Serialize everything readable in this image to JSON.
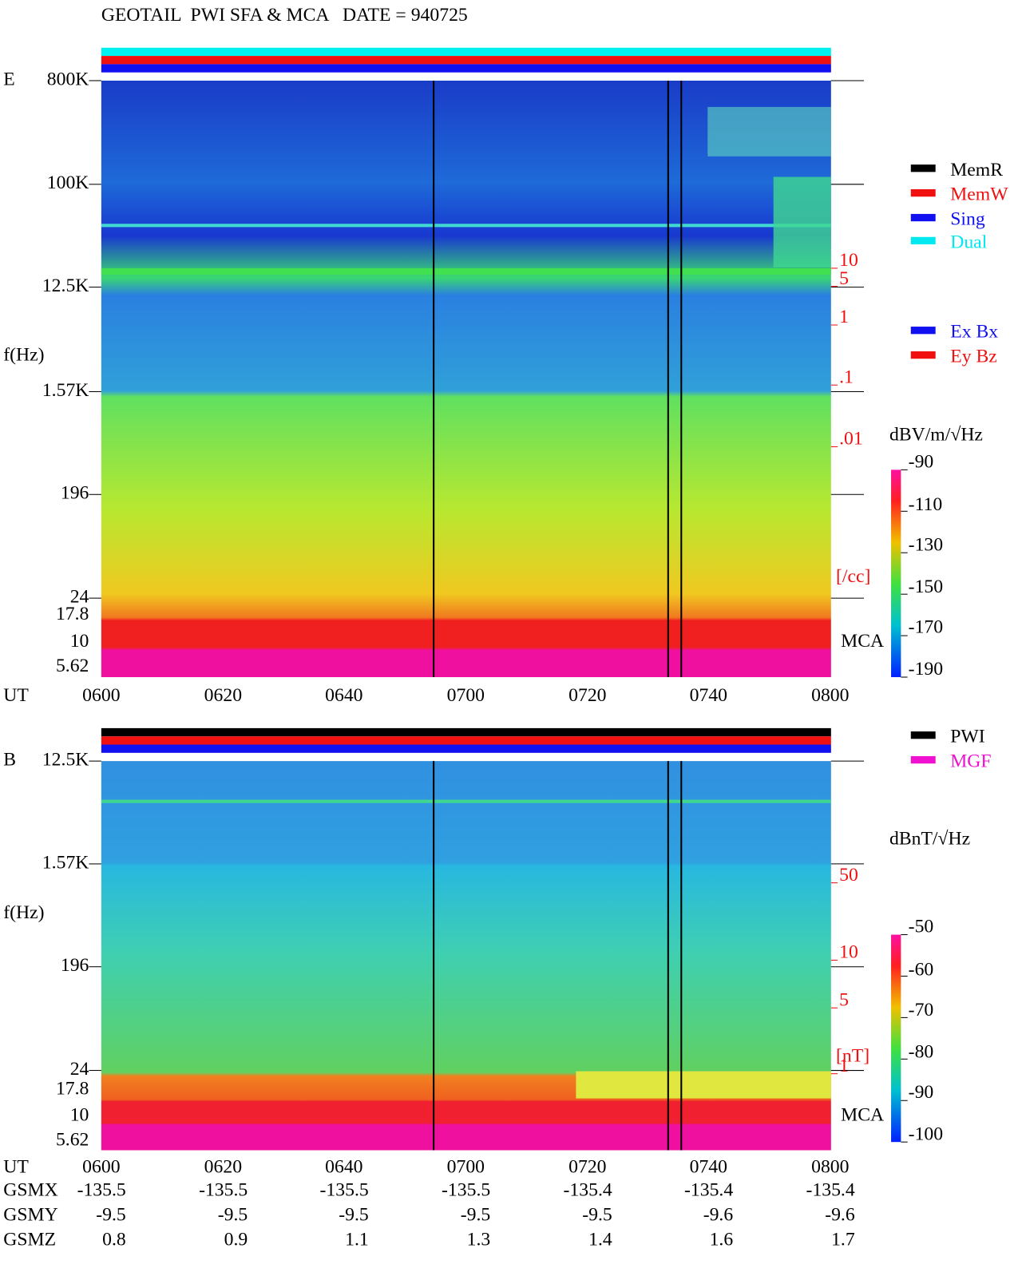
{
  "title": "GEOTAIL  PWI SFA & MCA   DATE = 940725",
  "panels": [
    {
      "label": "E",
      "freq_axis_label": "f(Hz)",
      "freq_labels": [
        "800K",
        "100K",
        "12.5K",
        "1.57K",
        "196",
        "24",
        "17.8",
        "10",
        "5.62"
      ],
      "time_axis_label": "UT",
      "time_labels": [
        "0600",
        "0620",
        "0640",
        "0700",
        "0720",
        "0740",
        "0800"
      ],
      "scale_labels": [
        "10",
        "5",
        "1",
        ".1",
        ".01"
      ],
      "scale_unit": "[/cc]",
      "mca_label": "MCA",
      "legend": [
        "MemR",
        "MemW",
        "Sing",
        "Dual",
        "Ex Bx",
        "Ey Bz"
      ],
      "colorbar_unit": "dBV/m/√Hz",
      "colorbar_labels": [
        "-90",
        "-110",
        "-130",
        "-150",
        "-170",
        "-190"
      ]
    },
    {
      "label": "B",
      "freq_axis_label": "f(Hz)",
      "freq_labels": [
        "12.5K",
        "1.57K",
        "196",
        "24",
        "17.8",
        "10",
        "5.62"
      ],
      "time_axis_label": "UT",
      "time_labels": [
        "0600",
        "0620",
        "0640",
        "0700",
        "0720",
        "0740",
        "0800"
      ],
      "scale_labels": [
        "50",
        "10",
        "5",
        "1"
      ],
      "scale_unit": "[nT]",
      "mca_label": "MCA",
      "legend": [
        "PWI",
        "MGF"
      ],
      "colorbar_unit": "dBnT/√Hz",
      "colorbar_labels": [
        "-50",
        "-60",
        "-70",
        "-80",
        "-90",
        "-100"
      ]
    }
  ],
  "orbit": [
    {
      "name": "GSMX",
      "values": [
        "-135.5",
        "-135.5",
        "-135.5",
        "-135.5",
        "-135.4",
        "-135.4",
        "-135.4"
      ]
    },
    {
      "name": "GSMY",
      "values": [
        "-9.5",
        "-9.5",
        "-9.5",
        "-9.5",
        "-9.5",
        "-9.6",
        "-9.6"
      ]
    },
    {
      "name": "GSMZ",
      "values": [
        "0.8",
        "0.9",
        "1.1",
        "1.3",
        "1.4",
        "1.6",
        "1.7"
      ]
    }
  ]
}
